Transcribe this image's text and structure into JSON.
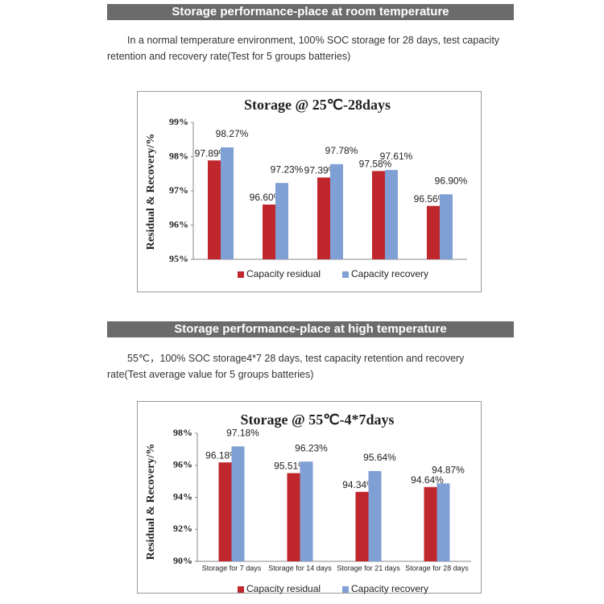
{
  "sections": [
    {
      "header": "Storage performance-place at room  temperature",
      "description": "In a normal temperature environment, 100% SOC storage for 28 days, test capacity retention and recovery rate(Test for 5 groups batteries)"
    },
    {
      "header": "Storage performance-place at high  temperature",
      "description": "55℃，100% SOC storage4*7 28 days, test capacity retention and recovery rate(Test average value for 5 groups batteries)"
    }
  ],
  "chart_data": [
    {
      "type": "bar",
      "title": "Storage @ 25℃-28days",
      "y_label": "Residual & Recovery/%",
      "categories": [
        null,
        null,
        null,
        null,
        null
      ],
      "series": [
        {
          "name": "Capacity residual",
          "color": "#c0272d",
          "values": [
            97.89,
            96.6,
            97.39,
            97.58,
            96.56
          ],
          "value_labels": [
            "97.89%",
            "96.60%",
            "97.39%",
            "97.58%",
            "96.56%"
          ]
        },
        {
          "name": "Capacity recovery",
          "color": "#7f9fd5",
          "values": [
            98.27,
            97.23,
            97.78,
            97.61,
            96.9
          ],
          "value_labels": [
            "98.27%",
            "97.23%",
            "97.78%",
            "97.61%",
            "96.90%"
          ]
        }
      ],
      "ylim": [
        95,
        99
      ],
      "yticks": [
        {
          "value": 95,
          "label": "95%"
        },
        {
          "value": 96,
          "label": "96%"
        },
        {
          "value": 97,
          "label": "97%"
        },
        {
          "value": 98,
          "label": "98%"
        },
        {
          "value": 99,
          "label": "99%"
        }
      ]
    },
    {
      "type": "bar",
      "title": "Storage @ 55℃-4*7days",
      "y_label": "Residual & Recovery/%",
      "categories": [
        "Storage for 7 days",
        "Storage for 14 days",
        "Storage for 21 days",
        "Storage for 28 days"
      ],
      "series": [
        {
          "name": "Capacity residual",
          "color": "#c0272d",
          "values": [
            96.18,
            95.51,
            94.34,
            94.64
          ],
          "value_labels": [
            "96.18%",
            "95.51%",
            "94.34%",
            "94.64%"
          ]
        },
        {
          "name": "Capacity recovery",
          "color": "#7f9fd5",
          "values": [
            97.18,
            96.23,
            95.64,
            94.87
          ],
          "value_labels": [
            "97.18%",
            "96.23%",
            "95.64%",
            "94.87%"
          ]
        }
      ],
      "ylim": [
        90,
        98
      ],
      "yticks": [
        {
          "value": 90,
          "label": "90%"
        },
        {
          "value": 92,
          "label": "92%"
        },
        {
          "value": 94,
          "label": "94%"
        },
        {
          "value": 96,
          "label": "96%"
        },
        {
          "value": 98,
          "label": "98%"
        }
      ]
    }
  ]
}
